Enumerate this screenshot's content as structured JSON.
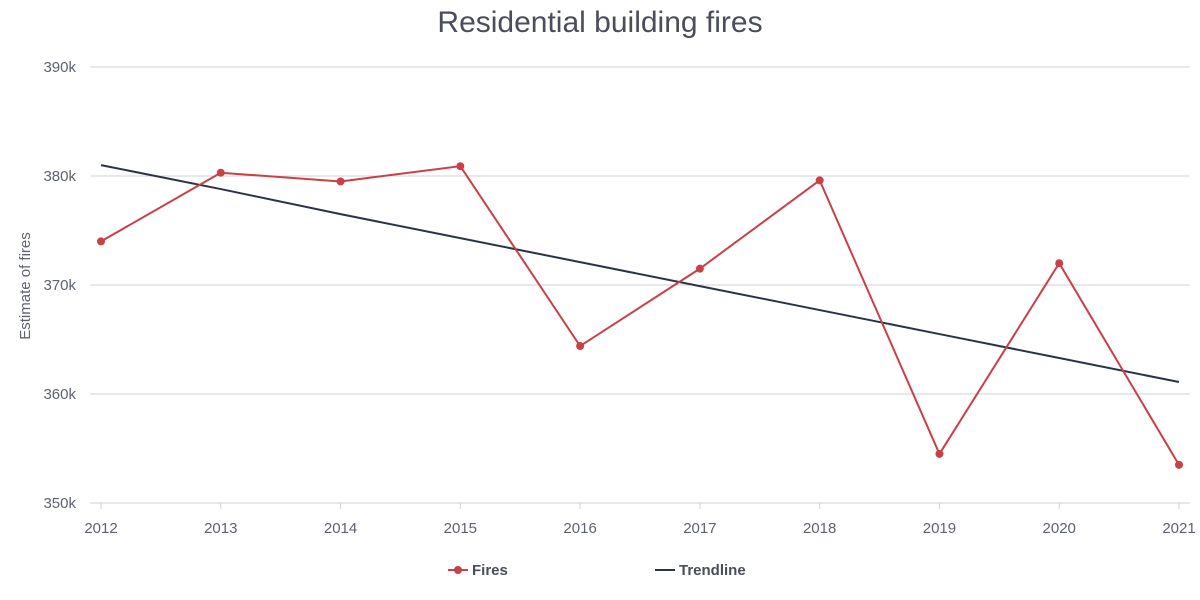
{
  "chart_data": {
    "type": "line",
    "title": "Residential building fires",
    "xlabel": "",
    "ylabel": "Estimate of fires",
    "categories": [
      "2012",
      "2013",
      "2014",
      "2015",
      "2016",
      "2017",
      "2018",
      "2019",
      "2020",
      "2021"
    ],
    "ylim": [
      350000,
      390000
    ],
    "yticks": [
      350000,
      360000,
      370000,
      380000,
      390000
    ],
    "ytick_labels": [
      "350k",
      "360k",
      "370k",
      "380k",
      "390k"
    ],
    "grid": true,
    "legend_position": "bottom",
    "series": [
      {
        "name": "Fires",
        "color": "#c94046",
        "marker": "circle",
        "values": [
          374000,
          380300,
          379500,
          380900,
          364400,
          371500,
          379600,
          354500,
          372000,
          353500
        ]
      },
      {
        "name": "Trendline",
        "color": "#2b3347",
        "marker": "none",
        "values": [
          381000,
          378800,
          376500,
          374300,
          372100,
          369900,
          367700,
          365500,
          363300,
          361100
        ]
      }
    ]
  }
}
